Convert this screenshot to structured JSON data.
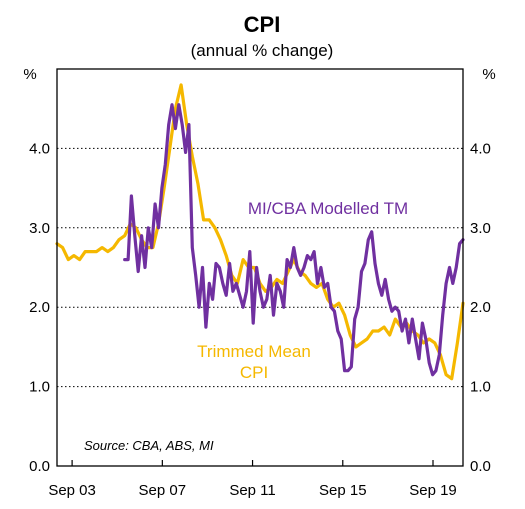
{
  "chart_data": {
    "type": "line",
    "title": "CPI",
    "subtitle": "(annual % change)",
    "y_unit_left": "%",
    "y_unit_right": "%",
    "ylim": [
      0,
      5
    ],
    "yticks": [
      "0.0",
      "1.0",
      "2.0",
      "3.0",
      "4.0"
    ],
    "xlim": [
      2003.0,
      2021.0
    ],
    "xticks": [
      {
        "label": "Sep 03",
        "x": 2003.67
      },
      {
        "label": "Sep 07",
        "x": 2007.67
      },
      {
        "label": "Sep 11",
        "x": 2011.67
      },
      {
        "label": "Sep 15",
        "x": 2015.67
      },
      {
        "label": "Sep 19",
        "x": 2019.67
      }
    ],
    "grid": "horizontal dotted",
    "source": "Source: CBA, ABS, MI",
    "series": [
      {
        "name": "Trimmed Mean CPI",
        "label_lines": [
          "Trimmed Mean",
          "CPI"
        ],
        "color": "#F5B800",
        "points": [
          [
            2003.0,
            2.8
          ],
          [
            2003.25,
            2.75
          ],
          [
            2003.5,
            2.6
          ],
          [
            2003.75,
            2.65
          ],
          [
            2004.0,
            2.6
          ],
          [
            2004.25,
            2.7
          ],
          [
            2004.5,
            2.7
          ],
          [
            2004.75,
            2.7
          ],
          [
            2005.0,
            2.75
          ],
          [
            2005.25,
            2.7
          ],
          [
            2005.5,
            2.75
          ],
          [
            2005.75,
            2.85
          ],
          [
            2006.0,
            2.9
          ],
          [
            2006.25,
            3.05
          ],
          [
            2006.5,
            3.0
          ],
          [
            2006.75,
            2.85
          ],
          [
            2007.0,
            2.75
          ],
          [
            2007.25,
            2.75
          ],
          [
            2007.5,
            3.05
          ],
          [
            2007.75,
            3.5
          ],
          [
            2008.0,
            4.0
          ],
          [
            2008.25,
            4.5
          ],
          [
            2008.5,
            4.8
          ],
          [
            2008.75,
            4.3
          ],
          [
            2009.0,
            3.9
          ],
          [
            2009.25,
            3.55
          ],
          [
            2009.5,
            3.1
          ],
          [
            2009.75,
            3.1
          ],
          [
            2010.0,
            3.0
          ],
          [
            2010.25,
            2.85
          ],
          [
            2010.5,
            2.65
          ],
          [
            2010.75,
            2.4
          ],
          [
            2011.0,
            2.3
          ],
          [
            2011.25,
            2.6
          ],
          [
            2011.5,
            2.5
          ],
          [
            2011.75,
            2.5
          ],
          [
            2012.0,
            2.3
          ],
          [
            2012.25,
            2.2
          ],
          [
            2012.5,
            2.25
          ],
          [
            2012.75,
            2.35
          ],
          [
            2013.0,
            2.3
          ],
          [
            2013.25,
            2.45
          ],
          [
            2013.5,
            2.6
          ],
          [
            2013.75,
            2.45
          ],
          [
            2014.0,
            2.4
          ],
          [
            2014.25,
            2.3
          ],
          [
            2014.5,
            2.25
          ],
          [
            2014.75,
            2.3
          ],
          [
            2015.0,
            2.1
          ],
          [
            2015.25,
            2.0
          ],
          [
            2015.5,
            2.05
          ],
          [
            2015.75,
            1.9
          ],
          [
            2016.0,
            1.65
          ],
          [
            2016.25,
            1.5
          ],
          [
            2016.5,
            1.55
          ],
          [
            2016.75,
            1.6
          ],
          [
            2017.0,
            1.7
          ],
          [
            2017.25,
            1.7
          ],
          [
            2017.5,
            1.75
          ],
          [
            2017.75,
            1.65
          ],
          [
            2018.0,
            1.85
          ],
          [
            2018.25,
            1.75
          ],
          [
            2018.5,
            1.8
          ],
          [
            2018.75,
            1.7
          ],
          [
            2019.0,
            1.65
          ],
          [
            2019.25,
            1.55
          ],
          [
            2019.5,
            1.6
          ],
          [
            2019.75,
            1.55
          ],
          [
            2020.0,
            1.4
          ],
          [
            2020.25,
            1.15
          ],
          [
            2020.5,
            1.1
          ],
          [
            2020.75,
            1.55
          ],
          [
            2021.0,
            2.05
          ]
        ]
      },
      {
        "name": "MI/CBA Modelled TM",
        "color": "#7030A0",
        "points": [
          [
            2006.0,
            2.6
          ],
          [
            2006.15,
            2.6
          ],
          [
            2006.3,
            3.4
          ],
          [
            2006.45,
            2.9
          ],
          [
            2006.6,
            2.45
          ],
          [
            2006.75,
            2.9
          ],
          [
            2006.9,
            2.5
          ],
          [
            2007.05,
            3.0
          ],
          [
            2007.2,
            2.75
          ],
          [
            2007.35,
            3.3
          ],
          [
            2007.5,
            3.0
          ],
          [
            2007.65,
            3.5
          ],
          [
            2007.8,
            3.8
          ],
          [
            2007.95,
            4.3
          ],
          [
            2008.1,
            4.55
          ],
          [
            2008.25,
            4.25
          ],
          [
            2008.4,
            4.55
          ],
          [
            2008.55,
            4.3
          ],
          [
            2008.7,
            3.95
          ],
          [
            2008.85,
            4.3
          ],
          [
            2009.0,
            2.75
          ],
          [
            2009.15,
            2.4
          ],
          [
            2009.3,
            2.0
          ],
          [
            2009.45,
            2.5
          ],
          [
            2009.6,
            1.75
          ],
          [
            2009.75,
            2.3
          ],
          [
            2009.9,
            2.1
          ],
          [
            2010.05,
            2.55
          ],
          [
            2010.2,
            2.5
          ],
          [
            2010.35,
            2.3
          ],
          [
            2010.5,
            2.15
          ],
          [
            2010.65,
            2.55
          ],
          [
            2010.8,
            2.2
          ],
          [
            2010.95,
            2.3
          ],
          [
            2011.1,
            2.15
          ],
          [
            2011.25,
            2.0
          ],
          [
            2011.4,
            2.2
          ],
          [
            2011.55,
            2.7
          ],
          [
            2011.7,
            1.8
          ],
          [
            2011.85,
            2.5
          ],
          [
            2012.0,
            2.2
          ],
          [
            2012.15,
            2.0
          ],
          [
            2012.3,
            2.1
          ],
          [
            2012.45,
            2.4
          ],
          [
            2012.6,
            1.9
          ],
          [
            2012.75,
            2.3
          ],
          [
            2012.9,
            2.2
          ],
          [
            2013.05,
            2.0
          ],
          [
            2013.2,
            2.6
          ],
          [
            2013.35,
            2.5
          ],
          [
            2013.5,
            2.75
          ],
          [
            2013.65,
            2.5
          ],
          [
            2013.8,
            2.4
          ],
          [
            2013.95,
            2.5
          ],
          [
            2014.1,
            2.65
          ],
          [
            2014.25,
            2.6
          ],
          [
            2014.4,
            2.7
          ],
          [
            2014.55,
            2.3
          ],
          [
            2014.7,
            2.5
          ],
          [
            2014.85,
            2.25
          ],
          [
            2015.0,
            2.3
          ],
          [
            2015.15,
            2.0
          ],
          [
            2015.3,
            1.95
          ],
          [
            2015.45,
            1.7
          ],
          [
            2015.6,
            1.6
          ],
          [
            2015.75,
            1.2
          ],
          [
            2015.9,
            1.2
          ],
          [
            2016.05,
            1.25
          ],
          [
            2016.2,
            1.85
          ],
          [
            2016.35,
            2.0
          ],
          [
            2016.5,
            2.45
          ],
          [
            2016.65,
            2.55
          ],
          [
            2016.8,
            2.85
          ],
          [
            2016.95,
            2.95
          ],
          [
            2017.1,
            2.55
          ],
          [
            2017.25,
            2.3
          ],
          [
            2017.4,
            2.15
          ],
          [
            2017.55,
            2.35
          ],
          [
            2017.7,
            2.1
          ],
          [
            2017.85,
            1.95
          ],
          [
            2018.0,
            2.0
          ],
          [
            2018.15,
            1.95
          ],
          [
            2018.3,
            1.7
          ],
          [
            2018.45,
            1.85
          ],
          [
            2018.6,
            1.55
          ],
          [
            2018.75,
            1.85
          ],
          [
            2018.9,
            1.6
          ],
          [
            2019.05,
            1.35
          ],
          [
            2019.2,
            1.8
          ],
          [
            2019.35,
            1.6
          ],
          [
            2019.5,
            1.3
          ],
          [
            2019.65,
            1.15
          ],
          [
            2019.8,
            1.2
          ],
          [
            2019.95,
            1.4
          ],
          [
            2020.1,
            1.9
          ],
          [
            2020.25,
            2.3
          ],
          [
            2020.4,
            2.5
          ],
          [
            2020.55,
            2.3
          ],
          [
            2020.7,
            2.5
          ],
          [
            2020.85,
            2.8
          ],
          [
            2021.0,
            2.85
          ]
        ]
      }
    ]
  }
}
